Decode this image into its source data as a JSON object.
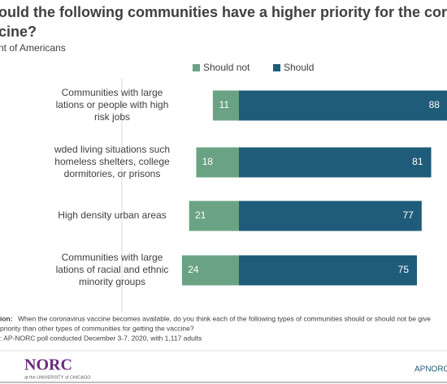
{
  "chart_data": {
    "type": "diverging-bar",
    "title": [
      "ould the following communities have a higher priority for the coronavir",
      "cine?"
    ],
    "subtitle": "nt of Americans",
    "categories": [
      [
        "Communities with large",
        "lations or people with high",
        "risk jobs"
      ],
      [
        "wded living situations such",
        "homeless shelters, college",
        "dormitories, or prisons"
      ],
      [
        "High density urban areas"
      ],
      [
        "Communities with large",
        "lations of racial and ethnic",
        "minority groups"
      ]
    ],
    "series": [
      {
        "name": "Should not",
        "color": "#6aa383",
        "values": [
          11,
          18,
          21,
          24
        ]
      },
      {
        "name": "Should",
        "color": "#1f5c7a",
        "values": [
          88,
          81,
          77,
          75
        ]
      }
    ],
    "notes": {
      "question_label": "ion:",
      "question": [
        "When the coronavirus vaccine becomes available, do you think each of the following types of communities should or should not be give",
        "priority than other types of communities for getting the vaccine?"
      ],
      "source": ": AP-NORC poll conducted December  3-7, 2020, with 1,117 adults"
    },
    "logo": {
      "name": "NORC",
      "sub": "at the UNIVERSITY of CHICAGO",
      "right": "APNORC"
    }
  }
}
